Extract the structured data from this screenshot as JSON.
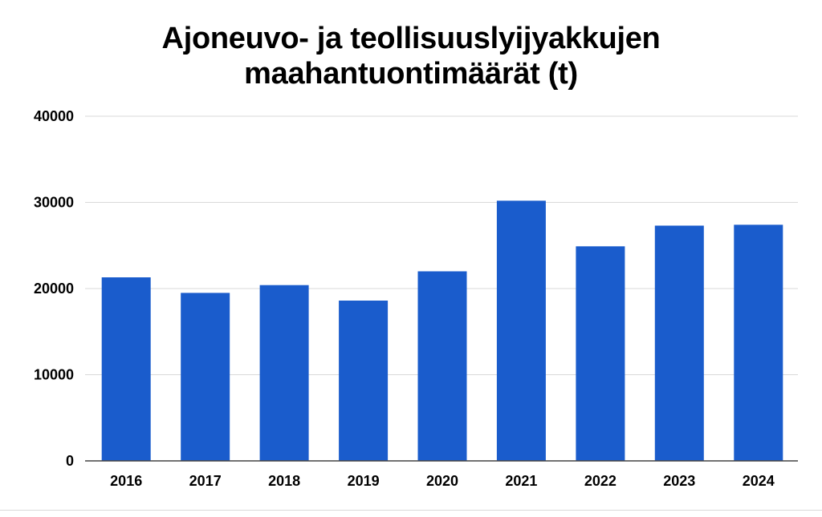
{
  "chart_data": {
    "type": "bar",
    "title_lines": [
      "Ajoneuvo- ja teollisuuslyijyakkujen",
      "maahantuontimäärät (t)"
    ],
    "title": "Ajoneuvo- ja teollisuuslyijyakkujen maahantuontimäärät (t)",
    "xlabel": "",
    "ylabel": "",
    "categories": [
      "2016",
      "2017",
      "2018",
      "2019",
      "2020",
      "2021",
      "2022",
      "2023",
      "2024"
    ],
    "values": [
      21300,
      19500,
      20400,
      18600,
      22000,
      30200,
      24900,
      27300,
      27400
    ],
    "ylim": [
      0,
      40000
    ],
    "yticks": [
      "0",
      "10000",
      "20000",
      "30000",
      "40000"
    ],
    "grid": true,
    "legend": "none",
    "colors": {
      "bar": "#1a5ccc",
      "grid": "#d9d9d9",
      "axis": "#444444"
    }
  }
}
